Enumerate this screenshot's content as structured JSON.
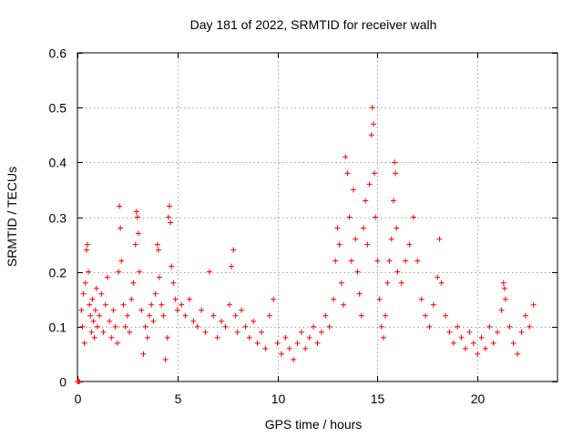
{
  "chart_data": {
    "type": "scatter",
    "title": "Day 181 of 2022, SRMTID for receiver walh",
    "xlabel": "GPS time / hours",
    "ylabel": "SRMTID / TECUs",
    "xlim": [
      0,
      24
    ],
    "ylim": [
      0,
      0.6
    ],
    "xticks": [
      0,
      5,
      10,
      15,
      20
    ],
    "yticks": [
      0,
      0.1,
      0.2,
      0.3,
      0.4,
      0.5,
      0.6
    ],
    "xtick_labels": [
      "0",
      "5",
      "10",
      "15",
      "20"
    ],
    "ytick_labels": [
      "0",
      "0.1",
      "0.2",
      "0.3",
      "0.4",
      "0.5",
      "0.6"
    ],
    "grid": true,
    "marker": "+",
    "color": "#ff0000",
    "series": [
      {
        "name": "SRMTID",
        "points": [
          [
            0.0,
            0.0
          ],
          [
            0.05,
            0.0
          ],
          [
            0.1,
            0.0
          ],
          [
            0.2,
            0.13
          ],
          [
            0.25,
            0.1
          ],
          [
            0.3,
            0.16
          ],
          [
            0.35,
            0.07
          ],
          [
            0.4,
            0.18
          ],
          [
            0.45,
            0.24
          ],
          [
            0.5,
            0.25
          ],
          [
            0.55,
            0.2
          ],
          [
            0.6,
            0.14
          ],
          [
            0.65,
            0.12
          ],
          [
            0.7,
            0.09
          ],
          [
            0.75,
            0.15
          ],
          [
            0.8,
            0.11
          ],
          [
            0.85,
            0.08
          ],
          [
            0.9,
            0.13
          ],
          [
            0.95,
            0.17
          ],
          [
            1.0,
            0.1
          ],
          [
            1.1,
            0.12
          ],
          [
            1.2,
            0.16
          ],
          [
            1.3,
            0.09
          ],
          [
            1.4,
            0.14
          ],
          [
            1.5,
            0.19
          ],
          [
            1.6,
            0.11
          ],
          [
            1.7,
            0.08
          ],
          [
            1.8,
            0.13
          ],
          [
            1.9,
            0.1
          ],
          [
            2.0,
            0.07
          ],
          [
            2.05,
            0.2
          ],
          [
            2.1,
            0.32
          ],
          [
            2.15,
            0.28
          ],
          [
            2.2,
            0.22
          ],
          [
            2.3,
            0.14
          ],
          [
            2.4,
            0.1
          ],
          [
            2.5,
            0.12
          ],
          [
            2.6,
            0.09
          ],
          [
            2.7,
            0.15
          ],
          [
            2.8,
            0.18
          ],
          [
            2.9,
            0.25
          ],
          [
            2.95,
            0.31
          ],
          [
            3.0,
            0.3
          ],
          [
            3.05,
            0.27
          ],
          [
            3.1,
            0.2
          ],
          [
            3.2,
            0.13
          ],
          [
            3.3,
            0.05
          ],
          [
            3.4,
            0.1
          ],
          [
            3.5,
            0.08
          ],
          [
            3.6,
            0.12
          ],
          [
            3.7,
            0.14
          ],
          [
            3.8,
            0.11
          ],
          [
            3.9,
            0.16
          ],
          [
            4.0,
            0.25
          ],
          [
            4.05,
            0.24
          ],
          [
            4.1,
            0.19
          ],
          [
            4.2,
            0.14
          ],
          [
            4.3,
            0.12
          ],
          [
            4.4,
            0.04
          ],
          [
            4.5,
            0.08
          ],
          [
            4.55,
            0.3
          ],
          [
            4.6,
            0.32
          ],
          [
            4.65,
            0.29
          ],
          [
            4.7,
            0.21
          ],
          [
            4.8,
            0.18
          ],
          [
            4.9,
            0.15
          ],
          [
            5.0,
            0.13
          ],
          [
            5.2,
            0.14
          ],
          [
            5.4,
            0.12
          ],
          [
            5.6,
            0.15
          ],
          [
            5.8,
            0.11
          ],
          [
            6.0,
            0.1
          ],
          [
            6.2,
            0.13
          ],
          [
            6.4,
            0.09
          ],
          [
            6.6,
            0.2
          ],
          [
            6.8,
            0.12
          ],
          [
            7.0,
            0.08
          ],
          [
            7.2,
            0.11
          ],
          [
            7.4,
            0.1
          ],
          [
            7.6,
            0.14
          ],
          [
            7.7,
            0.21
          ],
          [
            7.8,
            0.24
          ],
          [
            7.9,
            0.12
          ],
          [
            8.0,
            0.09
          ],
          [
            8.2,
            0.13
          ],
          [
            8.4,
            0.1
          ],
          [
            8.6,
            0.08
          ],
          [
            8.8,
            0.11
          ],
          [
            9.0,
            0.07
          ],
          [
            9.2,
            0.09
          ],
          [
            9.4,
            0.06
          ],
          [
            9.6,
            0.12
          ],
          [
            9.8,
            0.15
          ],
          [
            10.0,
            0.07
          ],
          [
            10.2,
            0.05
          ],
          [
            10.4,
            0.08
          ],
          [
            10.6,
            0.06
          ],
          [
            10.8,
            0.04
          ],
          [
            11.0,
            0.07
          ],
          [
            11.2,
            0.09
          ],
          [
            11.4,
            0.06
          ],
          [
            11.6,
            0.08
          ],
          [
            11.8,
            0.1
          ],
          [
            12.0,
            0.07
          ],
          [
            12.2,
            0.09
          ],
          [
            12.4,
            0.12
          ],
          [
            12.6,
            0.1
          ],
          [
            12.8,
            0.15
          ],
          [
            12.9,
            0.22
          ],
          [
            13.0,
            0.28
          ],
          [
            13.1,
            0.25
          ],
          [
            13.2,
            0.18
          ],
          [
            13.3,
            0.14
          ],
          [
            13.4,
            0.41
          ],
          [
            13.5,
            0.38
          ],
          [
            13.6,
            0.3
          ],
          [
            13.7,
            0.22
          ],
          [
            13.8,
            0.35
          ],
          [
            13.9,
            0.26
          ],
          [
            14.0,
            0.2
          ],
          [
            14.1,
            0.16
          ],
          [
            14.2,
            0.12
          ],
          [
            14.3,
            0.28
          ],
          [
            14.4,
            0.33
          ],
          [
            14.5,
            0.25
          ],
          [
            14.6,
            0.36
          ],
          [
            14.7,
            0.45
          ],
          [
            14.75,
            0.5
          ],
          [
            14.8,
            0.47
          ],
          [
            14.85,
            0.38
          ],
          [
            14.9,
            0.3
          ],
          [
            15.0,
            0.22
          ],
          [
            15.1,
            0.15
          ],
          [
            15.2,
            0.1
          ],
          [
            15.3,
            0.08
          ],
          [
            15.4,
            0.12
          ],
          [
            15.5,
            0.18
          ],
          [
            15.6,
            0.22
          ],
          [
            15.7,
            0.26
          ],
          [
            15.8,
            0.33
          ],
          [
            15.85,
            0.4
          ],
          [
            15.9,
            0.38
          ],
          [
            15.95,
            0.28
          ],
          [
            16.0,
            0.2
          ],
          [
            16.2,
            0.18
          ],
          [
            16.4,
            0.22
          ],
          [
            16.6,
            0.25
          ],
          [
            16.8,
            0.3
          ],
          [
            17.0,
            0.22
          ],
          [
            17.2,
            0.15
          ],
          [
            17.4,
            0.12
          ],
          [
            17.6,
            0.1
          ],
          [
            17.8,
            0.14
          ],
          [
            18.0,
            0.19
          ],
          [
            18.1,
            0.26
          ],
          [
            18.2,
            0.18
          ],
          [
            18.4,
            0.12
          ],
          [
            18.6,
            0.09
          ],
          [
            18.8,
            0.07
          ],
          [
            19.0,
            0.1
          ],
          [
            19.2,
            0.08
          ],
          [
            19.4,
            0.06
          ],
          [
            19.6,
            0.09
          ],
          [
            19.8,
            0.07
          ],
          [
            20.0,
            0.05
          ],
          [
            20.2,
            0.08
          ],
          [
            20.4,
            0.06
          ],
          [
            20.6,
            0.1
          ],
          [
            20.8,
            0.07
          ],
          [
            21.0,
            0.09
          ],
          [
            21.2,
            0.13
          ],
          [
            21.3,
            0.18
          ],
          [
            21.35,
            0.17
          ],
          [
            21.4,
            0.15
          ],
          [
            21.6,
            0.1
          ],
          [
            21.8,
            0.07
          ],
          [
            22.0,
            0.05
          ],
          [
            22.2,
            0.09
          ],
          [
            22.4,
            0.12
          ],
          [
            22.6,
            0.1
          ],
          [
            22.8,
            0.14
          ]
        ]
      }
    ]
  }
}
